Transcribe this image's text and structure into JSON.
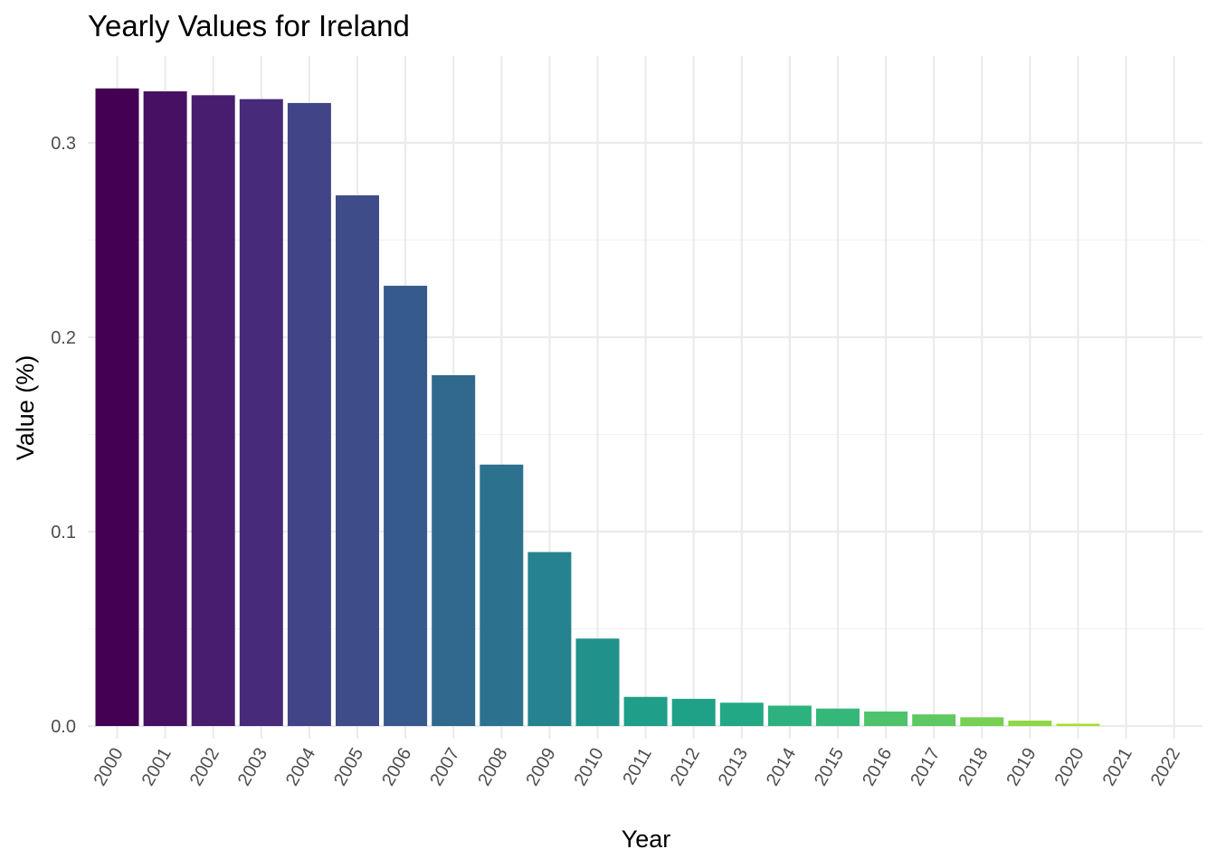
{
  "chart_data": {
    "type": "bar",
    "title": "Yearly Values for Ireland",
    "xlabel": "Year",
    "ylabel": "Value (%)",
    "categories": [
      "2000",
      "2001",
      "2002",
      "2003",
      "2004",
      "2005",
      "2006",
      "2007",
      "2008",
      "2009",
      "2010",
      "2011",
      "2012",
      "2013",
      "2014",
      "2015",
      "2016",
      "2017",
      "2018",
      "2019",
      "2020",
      "2021",
      "2022"
    ],
    "values": [
      0.328,
      0.3265,
      0.3245,
      0.3225,
      0.3205,
      0.273,
      0.2265,
      0.1805,
      0.1345,
      0.0895,
      0.045,
      0.015,
      0.014,
      0.012,
      0.0105,
      0.009,
      0.0075,
      0.006,
      0.0045,
      0.0028,
      0.0012,
      0.0,
      0.0
    ],
    "colors": [
      "#440154",
      "#471063",
      "#481d6f",
      "#472a7a",
      "#414487",
      "#3e4c8a",
      "#375a8c",
      "#31688e",
      "#2c728e",
      "#26828e",
      "#21918c",
      "#1f9e89",
      "#1fa187",
      "#22a884",
      "#2db27d",
      "#35b779",
      "#4ec36b",
      "#5ec962",
      "#75d054",
      "#8fd744",
      "#aadc32",
      "#c2df23",
      "#dde318"
    ],
    "ylim": [
      0,
      0.34
    ],
    "yticks": [
      0.0,
      0.1,
      0.2,
      0.3
    ],
    "ytick_labels": [
      "0.0",
      "0.1",
      "0.2",
      "0.3"
    ],
    "grid": true,
    "legend": "none"
  }
}
